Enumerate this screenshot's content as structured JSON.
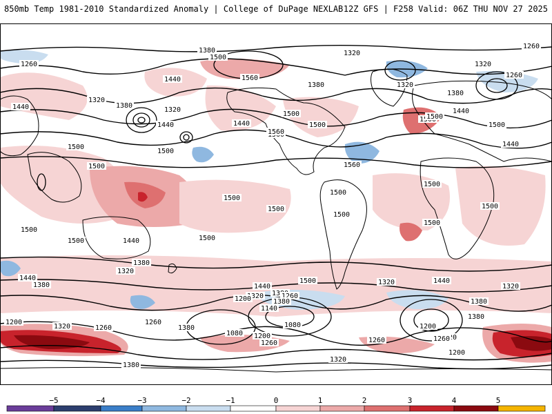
{
  "header": {
    "left": "850mb Temp 1981-2010 Standardized Anomaly | College of DuPage NEXLAB",
    "right": "12Z GFS | F258 Valid: 06Z THU NOV 27 2025"
  },
  "colors": {
    "cold5": "#6a3d9a",
    "cold4": "#2c3e6e",
    "cold3": "#3a7ec8",
    "cold2": "#8fb8e0",
    "cold1": "#c9ddef",
    "neutral": "#ffffff",
    "warm1": "#f6d4d4",
    "warm2": "#eca9a9",
    "warm3": "#de7070",
    "warm4": "#c8232c",
    "warm5": "#8b0a10",
    "warmExtreme": "#f4b400",
    "land": "#000000",
    "contour": "#000000"
  },
  "colorbar": {
    "ticks": [
      "−5",
      "−4",
      "−3",
      "−2",
      "−1",
      "0",
      "1",
      "2",
      "3",
      "4",
      "5"
    ]
  },
  "contour_labels": {
    "north": [
      "1380",
      "1500",
      "1320",
      "1260",
      "1260",
      "1320",
      "1440",
      "1560",
      "1380",
      "1320",
      "1320",
      "1260",
      "1440",
      "1380",
      "1320",
      "1380",
      "1440",
      "1500",
      "1440",
      "1560",
      "1440",
      "1500",
      "1500",
      "1560",
      "1440",
      "1500",
      "1500",
      "1560",
      "1500"
    ],
    "tropics": [
      "1500",
      "1500",
      "1500",
      "1500",
      "1500",
      "1500",
      "1500",
      "1500",
      "1500",
      "1500",
      "1500",
      "1440",
      "1500"
    ],
    "south": [
      "1380",
      "1320",
      "1440",
      "1380",
      "1440",
      "1380",
      "1320",
      "1260",
      "1200",
      "1140",
      "1080",
      "1260",
      "1200",
      "1080",
      "1200",
      "1260",
      "1260",
      "1320",
      "1380",
      "1440",
      "1380",
      "1320",
      "1380",
      "1500",
      "1380",
      "1320",
      "1200",
      "1200",
      "1260",
      "1320",
      "1260",
      "1320",
      "1380"
    ]
  }
}
